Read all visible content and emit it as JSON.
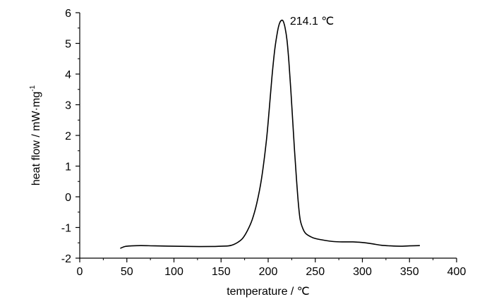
{
  "chart_data": {
    "type": "line",
    "title": "",
    "xlabel": "temperature / ℃",
    "ylabel_main": "heat flow / mW·mg",
    "ylabel_sup": "-1",
    "xlim": [
      0,
      400
    ],
    "ylim": [
      -2,
      6
    ],
    "xticks": [
      "0",
      "50",
      "100",
      "150",
      "200",
      "250",
      "300",
      "350",
      "400"
    ],
    "yticks": [
      "-2",
      "-1",
      "0",
      "1",
      "2",
      "3",
      "4",
      "5",
      "6"
    ],
    "grid": false,
    "line_color": "#000000",
    "annotation": {
      "text": "214.1 ℃",
      "x": 214.1,
      "y": 5.75
    },
    "series": [
      {
        "x": [
          43,
          48,
          55,
          65,
          80,
          100,
          120,
          140,
          150,
          158,
          163,
          168,
          173,
          178,
          183,
          188,
          193,
          198,
          201,
          204,
          207,
          210,
          212,
          214.1,
          216,
          218,
          220,
          222,
          224,
          226,
          228,
          230,
          232,
          234,
          237,
          240,
          245,
          250,
          260,
          270,
          280,
          290,
          300,
          310,
          320,
          330,
          340,
          350,
          361
        ],
        "y": [
          -1.68,
          -1.62,
          -1.6,
          -1.59,
          -1.6,
          -1.61,
          -1.62,
          -1.62,
          -1.61,
          -1.6,
          -1.56,
          -1.48,
          -1.35,
          -1.1,
          -0.75,
          -0.2,
          0.6,
          1.8,
          2.8,
          3.9,
          4.8,
          5.4,
          5.65,
          5.75,
          5.72,
          5.5,
          5.1,
          4.4,
          3.5,
          2.5,
          1.5,
          0.6,
          -0.2,
          -0.75,
          -1.05,
          -1.2,
          -1.3,
          -1.36,
          -1.42,
          -1.46,
          -1.47,
          -1.47,
          -1.49,
          -1.53,
          -1.58,
          -1.6,
          -1.61,
          -1.6,
          -1.59
        ]
      }
    ]
  }
}
